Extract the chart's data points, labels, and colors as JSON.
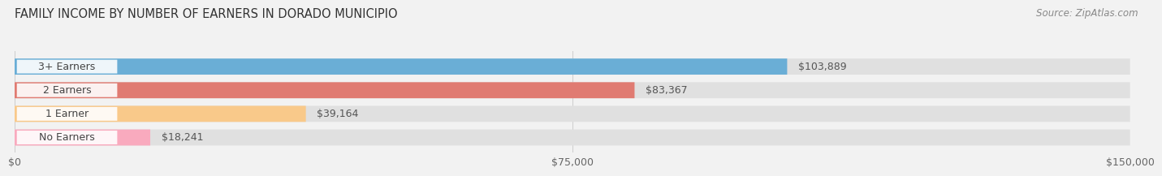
{
  "title": "FAMILY INCOME BY NUMBER OF EARNERS IN DORADO MUNICIPIO",
  "source": "Source: ZipAtlas.com",
  "categories": [
    "No Earners",
    "1 Earner",
    "2 Earners",
    "3+ Earners"
  ],
  "values": [
    18241,
    39164,
    83367,
    103889
  ],
  "bar_colors": [
    "#f9aabe",
    "#f9c98a",
    "#e07b72",
    "#6aaed6"
  ],
  "value_labels": [
    "$18,241",
    "$39,164",
    "$83,367",
    "$103,889"
  ],
  "xlim": [
    0,
    150000
  ],
  "xticks": [
    0,
    75000,
    150000
  ],
  "xtick_labels": [
    "$0",
    "$75,000",
    "$150,000"
  ],
  "background_color": "#f2f2f2",
  "bar_bg_color": "#e0e0e0",
  "title_fontsize": 10.5,
  "tick_fontsize": 9,
  "label_fontsize": 9,
  "value_fontsize": 9
}
